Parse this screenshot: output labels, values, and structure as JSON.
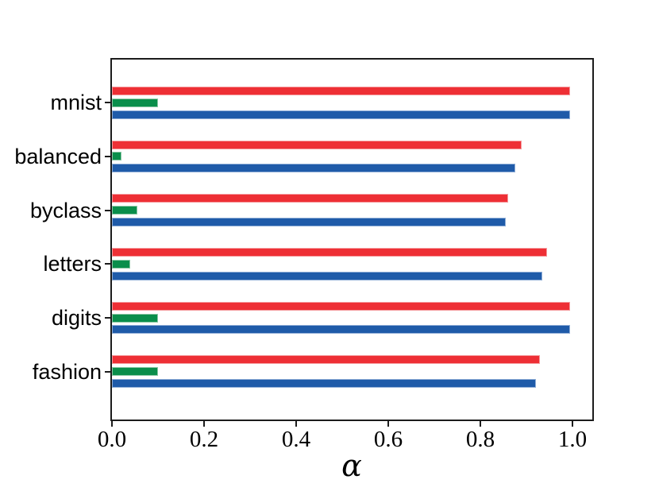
{
  "chart_data": {
    "type": "bar",
    "orientation": "horizontal",
    "title": "",
    "xlabel": "α",
    "ylabel": "",
    "grid": false,
    "legend": "none",
    "xlim": [
      0.0,
      1.043
    ],
    "x_ticks": [
      {
        "value": 0.0,
        "label": "0.0"
      },
      {
        "value": 0.2,
        "label": "0.2"
      },
      {
        "value": 0.4,
        "label": "0.4"
      },
      {
        "value": 0.6,
        "label": "0.6"
      },
      {
        "value": 0.8,
        "label": "0.8"
      },
      {
        "value": 1.0,
        "label": "1.0"
      }
    ],
    "categories": [
      "mnist",
      "balanced",
      "byclass",
      "letters",
      "digits",
      "fashion"
    ],
    "series": [
      {
        "name": "red-series",
        "color": "#ee2f35",
        "edge_color": "#f59a9d",
        "values": [
          0.995,
          0.89,
          0.86,
          0.945,
          0.995,
          0.93
        ]
      },
      {
        "name": "green-series",
        "color": "#0a8e4b",
        "edge_color": "#8cc7a5",
        "values": [
          0.1,
          0.02,
          0.055,
          0.04,
          0.1,
          0.1
        ]
      },
      {
        "name": "blue-series",
        "color": "#1f5ba9",
        "edge_color": "#8fadd6",
        "values": [
          0.995,
          0.875,
          0.855,
          0.935,
          0.995,
          0.92
        ]
      }
    ],
    "axis_color": "#1c1c1c"
  }
}
